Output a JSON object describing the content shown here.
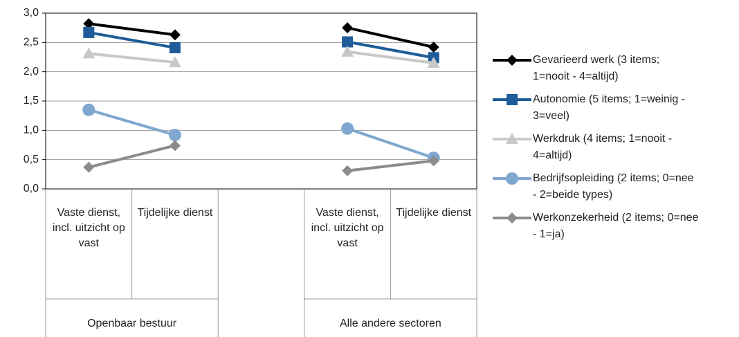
{
  "chart_data": {
    "type": "line",
    "categories": [
      "Vaste dienst, incl. uitzicht op vast",
      "Tijdelijke dienst",
      null,
      "Vaste dienst, incl. uitzicht op vast",
      "Tijdelijke dienst"
    ],
    "groups": [
      {
        "name": "Openbaar bestuur",
        "start": 0,
        "end": 1
      },
      {
        "name": "Alle andere sectoren",
        "start": 3,
        "end": 4
      }
    ],
    "series": [
      {
        "name": "Gevarieerd werk (3 items; 1=nooit - 4=altijd)",
        "color": "#000000",
        "marker": "diamond",
        "values": [
          2.82,
          2.63,
          null,
          2.75,
          2.42
        ]
      },
      {
        "name": "Autonomie (5 items; 1=weinig - 3=veel)",
        "color": "#1f5c99",
        "marker": "square",
        "values": [
          2.67,
          2.41,
          null,
          2.51,
          2.24
        ]
      },
      {
        "name": "Werkdruk (4 items; 1=nooit - 4=altijd)",
        "color": "#c8c8c8",
        "marker": "triangle",
        "values": [
          2.31,
          2.16,
          null,
          2.34,
          2.15
        ]
      },
      {
        "name": "Bedrijfsopleiding (2 items; 0=nee - 2=beide types)",
        "color": "#7fa7cf",
        "marker": "circle",
        "values": [
          1.35,
          0.92,
          null,
          1.03,
          0.53
        ]
      },
      {
        "name": "Werkonzekerheid (2 items; 0=nee - 1=ja)",
        "color": "#8c8c8c",
        "marker": "diamond",
        "values": [
          0.37,
          0.74,
          null,
          0.31,
          0.48
        ]
      }
    ],
    "ylim": [
      0,
      3
    ],
    "yticks": [
      {
        "value": 0,
        "label": "0,0"
      },
      {
        "value": 0.5,
        "label": "0,5"
      },
      {
        "value": 1,
        "label": "1,0"
      },
      {
        "value": 1.5,
        "label": "1,5"
      },
      {
        "value": 2,
        "label": "2,0"
      },
      {
        "value": 2.5,
        "label": "2,5"
      },
      {
        "value": 3,
        "label": "3,0"
      }
    ],
    "grid": true
  }
}
